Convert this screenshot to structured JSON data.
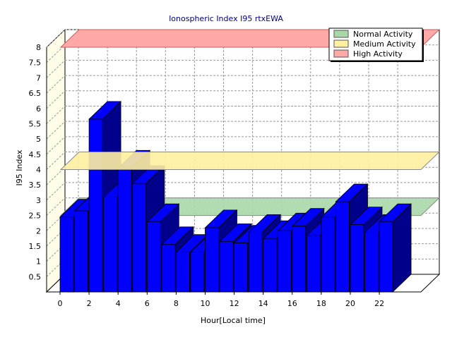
{
  "chart_data": {
    "type": "bar",
    "title": "Ionospheric Index I95 rtxEWA",
    "xlabel": "Hour[Local time]",
    "ylabel": "I95 Index",
    "ylim": [
      0,
      8
    ],
    "y_ticks": [
      "0.5",
      "1",
      "1.5",
      "2",
      "2.5",
      "3",
      "3.5",
      "4",
      "4.5",
      "5",
      "5.5",
      "6",
      "6.5",
      "7",
      "7.5",
      "8"
    ],
    "x_ticks": [
      "0",
      "2",
      "4",
      "6",
      "8",
      "10",
      "12",
      "14",
      "16",
      "18",
      "20",
      "22"
    ],
    "categories": [
      0,
      1,
      2,
      3,
      4,
      5,
      6,
      7,
      8,
      9,
      10,
      11,
      12,
      13,
      14,
      15,
      16,
      17,
      18,
      19,
      20,
      21,
      22,
      23
    ],
    "values": [
      2.45,
      2.65,
      5.65,
      3.1,
      4.05,
      3.55,
      2.3,
      1.55,
      1.3,
      1.3,
      2.1,
      1.65,
      1.6,
      1.95,
      1.75,
      2.0,
      2.15,
      1.85,
      2.45,
      2.95,
      2.2,
      1.95,
      2.3,
      0
    ],
    "bar_color": "#0000ff",
    "bar_side_color": "#00008b",
    "grid": true,
    "legend_position": "top-right",
    "legend": [
      {
        "label": "Normal Activity",
        "color": "#a8d8a8"
      },
      {
        "label": "Medium Activity",
        "color": "#fff0a0"
      },
      {
        "label": "High Activity",
        "color": "#ffa8a8"
      }
    ],
    "bands": [
      {
        "name": "Normal Activity",
        "value": 2.5,
        "color": "#a8d8a8"
      },
      {
        "name": "Medium Activity",
        "value": 4.0,
        "color": "#fff0a0"
      },
      {
        "name": "High Activity",
        "value": 8.0,
        "color": "#ffa8a8"
      }
    ]
  }
}
